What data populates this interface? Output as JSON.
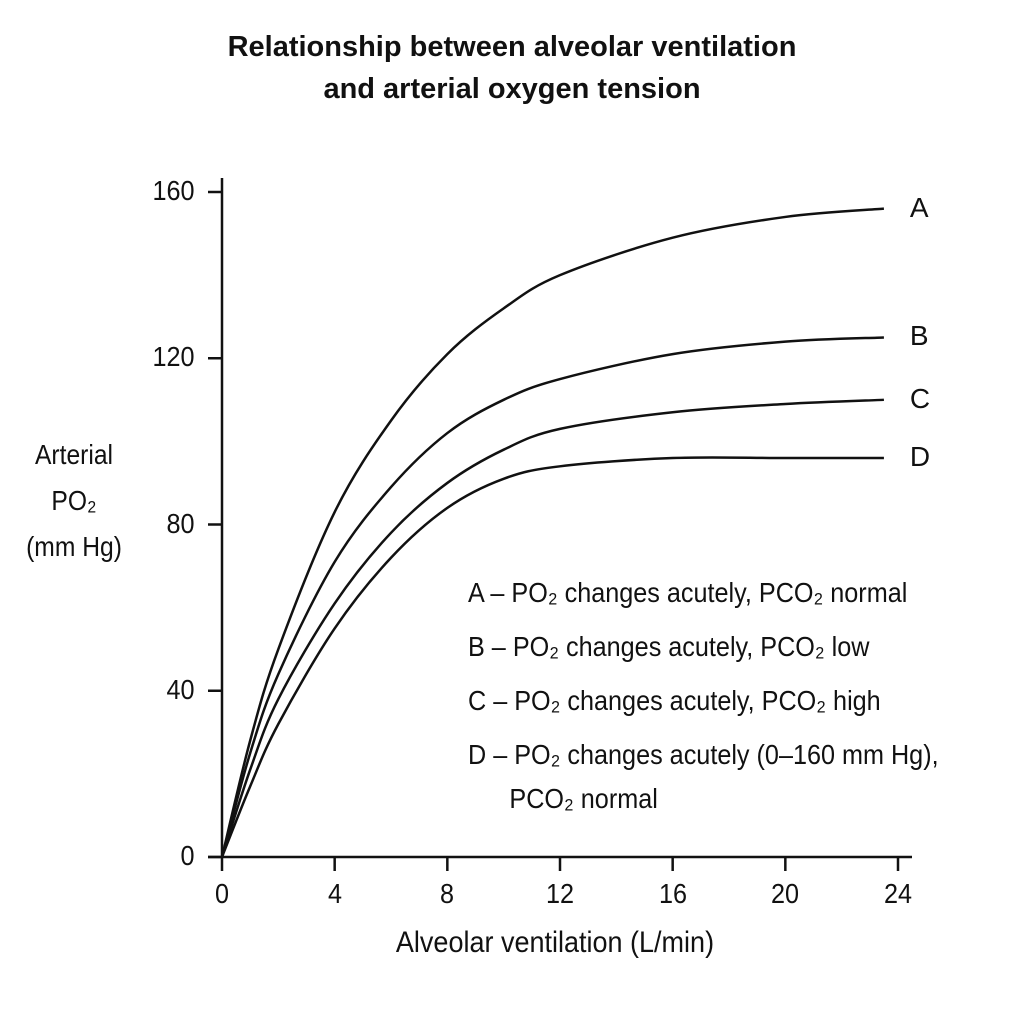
{
  "chart_data": {
    "type": "line",
    "title_line1": "Relationship between alveolar ventilation",
    "title_line2": "and arterial oxygen tension",
    "xlabel": "Alveolar ventilation (L/min)",
    "ylabel_lines": [
      "Arterial",
      "PO₂",
      "(mm Hg)"
    ],
    "xlim": [
      0,
      24
    ],
    "ylim": [
      0,
      160
    ],
    "x_ticks": [
      0,
      4,
      8,
      12,
      16,
      20,
      24
    ],
    "y_ticks": [
      0,
      40,
      80,
      120,
      160
    ],
    "grid": false,
    "series": [
      {
        "name": "A",
        "x": [
          0,
          1,
          2,
          4,
          6,
          8,
          10,
          12,
          16,
          20,
          23.5
        ],
        "y": [
          0,
          28,
          50,
          83,
          105,
          121,
          132,
          140,
          149,
          154,
          156
        ]
      },
      {
        "name": "B",
        "x": [
          0,
          1,
          2,
          4,
          6,
          8,
          10,
          12,
          16,
          20,
          23.5
        ],
        "y": [
          0,
          25,
          44,
          71,
          89,
          102,
          110,
          115,
          121,
          124,
          125
        ]
      },
      {
        "name": "C",
        "x": [
          0,
          1,
          2,
          4,
          6,
          8,
          10,
          12,
          16,
          20,
          23.5
        ],
        "y": [
          0,
          21,
          38,
          61,
          78,
          90,
          98,
          103,
          107,
          109,
          110
        ]
      },
      {
        "name": "D",
        "x": [
          0,
          1,
          2,
          4,
          6,
          8,
          10,
          12,
          16,
          20,
          23.5
        ],
        "y": [
          0,
          17,
          32,
          55,
          72,
          84,
          91,
          94,
          96,
          96,
          96
        ]
      }
    ],
    "legend": [
      "A – PO₂ changes acutely,  PCO₂ normal",
      "B – PO₂ changes acutely,  PCO₂ low",
      "C – PO₂ changes acutely,  PCO₂ high",
      "D – PO₂ changes acutely (0–160 mm Hg),"
    ],
    "legend_continuation": "PCO₂ normal",
    "legend_placement": "lower-right"
  }
}
